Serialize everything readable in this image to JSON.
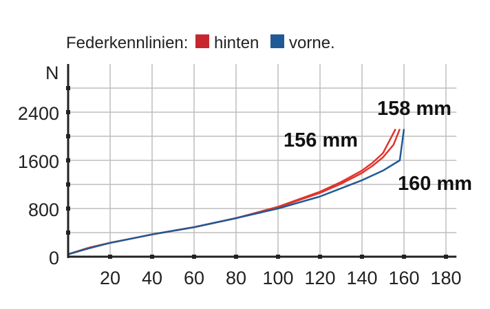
{
  "chart_data": {
    "type": "line",
    "legend": {
      "title": "Federkennlinien:",
      "placement": "top",
      "entries": [
        {
          "label": "hinten",
          "color": "#c8262e"
        },
        {
          "label": "vorne.",
          "color": "#1f5a96"
        }
      ]
    },
    "ylabel": "N",
    "xlabel": "",
    "xlim": [
      0,
      185
    ],
    "ylim": [
      0,
      3200
    ],
    "x_ticks": [
      20,
      40,
      60,
      80,
      100,
      120,
      140,
      160,
      180
    ],
    "y_ticks": [
      0,
      800,
      1600,
      2400
    ],
    "grid": true,
    "series": [
      {
        "color": "#e0342c",
        "x": [
          0,
          10,
          20,
          30,
          40,
          60,
          80,
          100,
          120,
          130,
          140,
          145,
          150,
          156
        ],
        "y": [
          40,
          150,
          230,
          300,
          370,
          490,
          640,
          830,
          1080,
          1240,
          1430,
          1560,
          1720,
          2120
        ]
      },
      {
        "color": "#e0342c",
        "x": [
          0,
          10,
          20,
          30,
          40,
          60,
          80,
          100,
          120,
          130,
          140,
          145,
          150,
          155,
          158
        ],
        "y": [
          40,
          150,
          230,
          300,
          370,
          490,
          640,
          820,
          1060,
          1210,
          1390,
          1510,
          1650,
          1860,
          2120
        ]
      },
      {
        "color": "#1f5a96",
        "x": [
          0,
          10,
          20,
          30,
          40,
          60,
          80,
          100,
          120,
          140,
          150,
          158,
          160
        ],
        "y": [
          40,
          140,
          230,
          300,
          370,
          490,
          640,
          800,
          1000,
          1270,
          1430,
          1600,
          2120
        ]
      }
    ],
    "annotations": [
      "156 mm",
      "158 mm",
      "160 mm"
    ]
  }
}
